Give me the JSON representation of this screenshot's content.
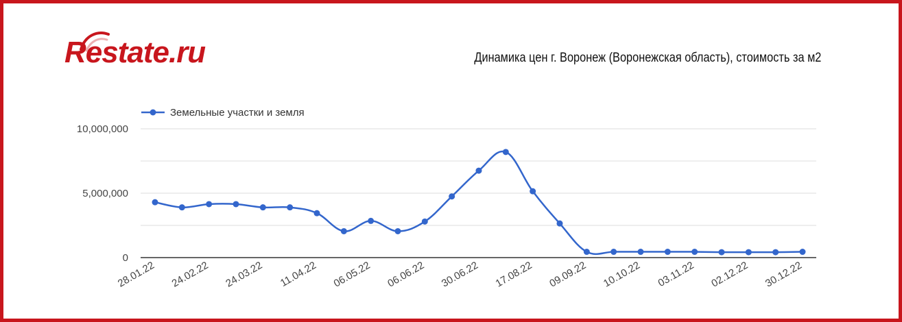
{
  "logo": {
    "text": "Restate.ru"
  },
  "colors": {
    "frame": "#c8161d",
    "series": "#3366cc",
    "grid": "#dddddd",
    "axis": "#333333"
  },
  "chart_data": {
    "type": "line",
    "title": "Динамика цен г. Воронеж (Воронежская область), стоимость за м2",
    "xlabel": "",
    "ylabel": "",
    "legend_position": "top-left",
    "grid": true,
    "ylim": [
      0,
      10000000
    ],
    "y_ticks": [
      "0",
      "5,000,000",
      "10,000,000"
    ],
    "x_tick_labels": [
      "28.01.22",
      "24.02.22",
      "24.03.22",
      "11.04.22",
      "06.05.22",
      "06.06.22",
      "30.06.22",
      "17.08.22",
      "09.09.22",
      "10.10.22",
      "03.11.22",
      "02.12.22",
      "30.12.22"
    ],
    "series": [
      {
        "name": "Земельные участки и земля",
        "values": [
          4300000,
          3900000,
          4150000,
          4150000,
          3900000,
          3900000,
          3450000,
          2050000,
          2850000,
          2050000,
          2800000,
          4750000,
          6750000,
          8200000,
          5150000,
          2650000,
          450000,
          450000,
          450000,
          450000,
          450000,
          420000,
          420000,
          420000,
          450000
        ]
      }
    ]
  }
}
